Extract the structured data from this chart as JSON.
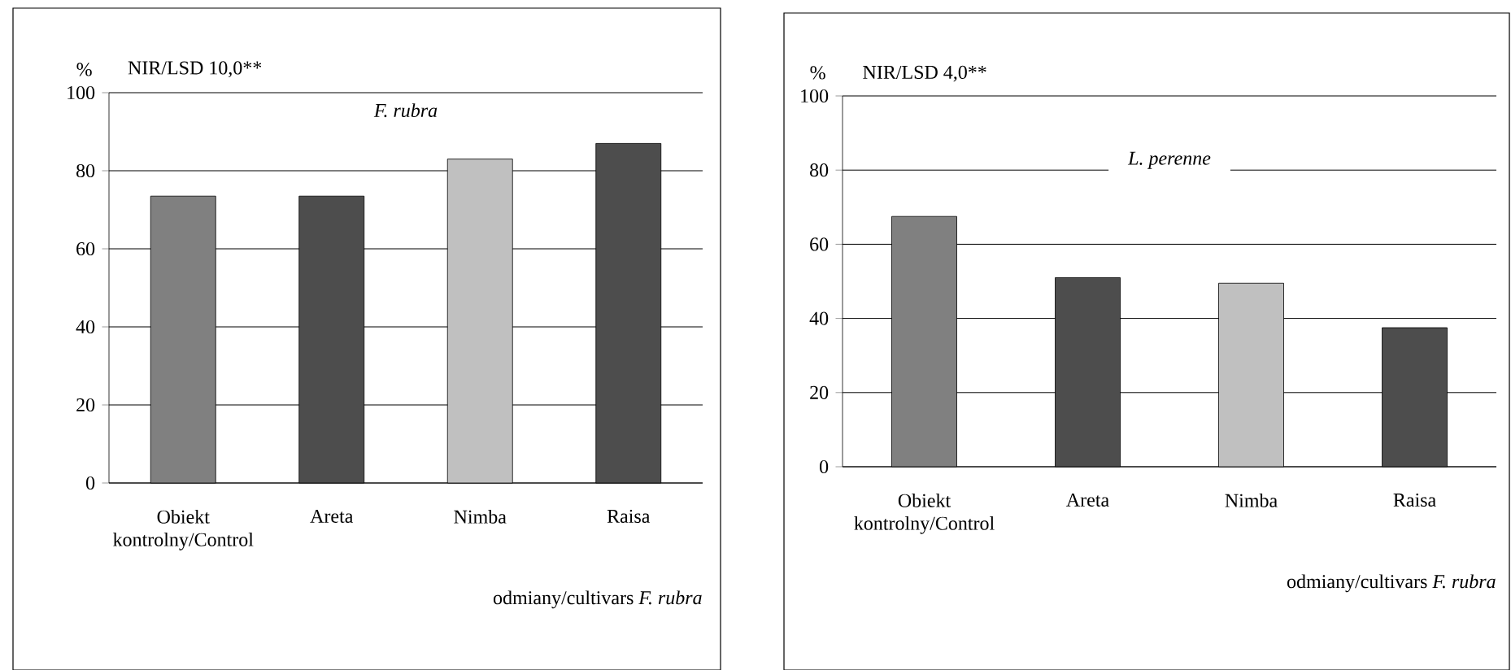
{
  "chart_data": [
    {
      "type": "bar",
      "title": "*F. rubra*",
      "ylabel": "%",
      "xlabel": "odmiany/cultivars *F. rubra*",
      "annotations": [
        "NIR/LSD 10,0**"
      ],
      "categories": [
        "Obiekt kontrolny/Control",
        "Areta",
        "Nimba",
        "Raisa"
      ],
      "values": [
        73.5,
        73.5,
        83,
        87
      ],
      "colors": [
        "#808080",
        "#4d4d4d",
        "#c0c0c0",
        "#4d4d4d"
      ],
      "ylim": [
        0,
        100
      ],
      "yticks": [
        0,
        20,
        40,
        60,
        80,
        100
      ],
      "grid": "y"
    },
    {
      "type": "bar",
      "title": "*L. perenne*",
      "ylabel": "%",
      "xlabel": "odmiany/cultivars *F. rubra*",
      "annotations": [
        "NIR/LSD 4,0**"
      ],
      "categories": [
        "Obiekt kontrolny/Control",
        "Areta",
        "Nimba",
        "Raisa"
      ],
      "values": [
        67.5,
        51,
        49.5,
        37.5
      ],
      "colors": [
        "#808080",
        "#4d4d4d",
        "#c0c0c0",
        "#4d4d4d"
      ],
      "ylim": [
        0,
        100
      ],
      "yticks": [
        0,
        20,
        40,
        60,
        80,
        100
      ],
      "grid": "y"
    }
  ]
}
